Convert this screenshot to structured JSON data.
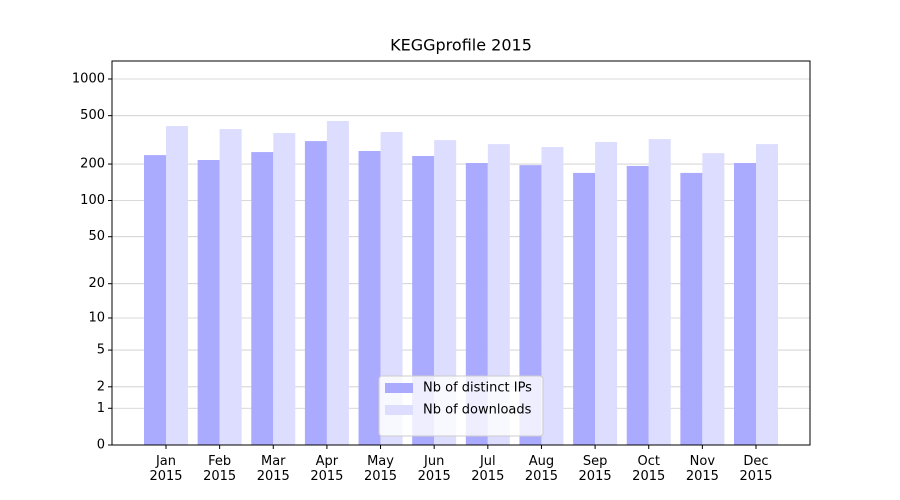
{
  "chart_data": {
    "type": "bar",
    "title": "KEGGprofile 2015",
    "categories": [
      "Jan\n2015",
      "Feb\n2015",
      "Mar\n2015",
      "Apr\n2015",
      "May\n2015",
      "Jun\n2015",
      "Jul\n2015",
      "Aug\n2015",
      "Sep\n2015",
      "Oct\n2015",
      "Nov\n2015",
      "Dec\n2015"
    ],
    "series": [
      {
        "name": "Nb of distinct IPs",
        "color": "#aaaaff",
        "values": [
          237,
          216,
          251,
          309,
          256,
          233,
          204,
          196,
          169,
          193,
          169,
          204
        ]
      },
      {
        "name": "Nb of downloads",
        "color": "#ddddff",
        "values": [
          411,
          388,
          360,
          452,
          367,
          315,
          292,
          276,
          304,
          321,
          246,
          292
        ]
      }
    ],
    "yscale": "log1p",
    "ylim": [
      0,
      1405
    ],
    "yticks": [
      0,
      1,
      2,
      5,
      10,
      20,
      50,
      100,
      200,
      500,
      1000
    ],
    "grid": true,
    "legend": "lower center"
  }
}
